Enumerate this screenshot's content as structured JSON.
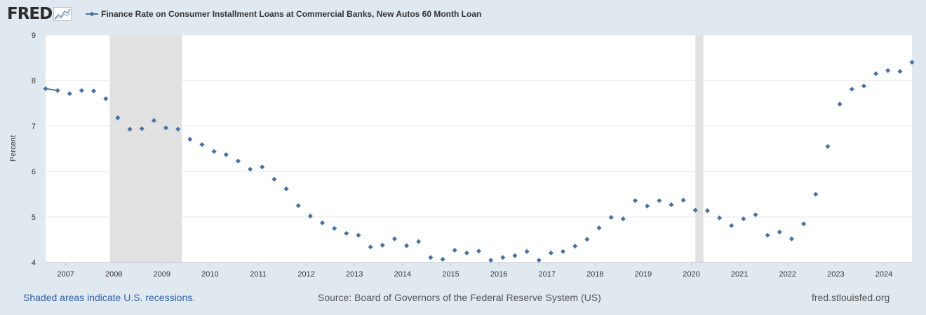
{
  "header": {
    "logo_text": "FRED",
    "series_title": "Finance Rate on Consumer Installment Loans at Commercial Banks, New Autos 60 Month Loan"
  },
  "footer": {
    "recession_note": "Shaded areas indicate U.S. recessions.",
    "source": "Source: Board of Governors of the Federal Reserve System (US)",
    "site": "fred.stlouisfed.org"
  },
  "colors": {
    "series": "#4572a7",
    "recession": "#e1e1e1",
    "plot_background": "#ffffff",
    "page_background": "#e1e9f0",
    "gridline": "#e6e6e6"
  },
  "chart_data": {
    "type": "scatter",
    "title": "Finance Rate on Consumer Installment Loans at Commercial Banks, New Autos 60 Month Loan",
    "ylabel": "Percent",
    "xlabel": "",
    "ylim": [
      4,
      9
    ],
    "yticks": [
      4,
      5,
      6,
      7,
      8,
      9
    ],
    "xlim": [
      "2006-08-01",
      "2024-08-01"
    ],
    "xticks": [
      "2007",
      "2008",
      "2009",
      "2010",
      "2011",
      "2012",
      "2013",
      "2014",
      "2015",
      "2016",
      "2017",
      "2018",
      "2019",
      "2020",
      "2021",
      "2022",
      "2023",
      "2024"
    ],
    "grid": true,
    "legend": "top-left",
    "recessions": [
      {
        "start": "2007-12-01",
        "end": "2009-06-01"
      },
      {
        "start": "2020-02-01",
        "end": "2020-04-01"
      }
    ],
    "series": [
      {
        "name": "Finance Rate on Consumer Installment Loans at Commercial Banks, New Autos 60 Month Loan",
        "x": [
          "2006-08-01",
          "2006-11-01",
          "2007-02-01",
          "2007-05-01",
          "2007-08-01",
          "2007-11-01",
          "2008-02-01",
          "2008-05-01",
          "2008-08-01",
          "2008-11-01",
          "2009-02-01",
          "2009-05-01",
          "2009-08-01",
          "2009-11-01",
          "2010-02-01",
          "2010-05-01",
          "2010-08-01",
          "2010-11-01",
          "2011-02-01",
          "2011-05-01",
          "2011-08-01",
          "2011-11-01",
          "2012-02-01",
          "2012-05-01",
          "2012-08-01",
          "2012-11-01",
          "2013-02-01",
          "2013-05-01",
          "2013-08-01",
          "2013-11-01",
          "2014-02-01",
          "2014-05-01",
          "2014-08-01",
          "2014-11-01",
          "2015-02-01",
          "2015-05-01",
          "2015-08-01",
          "2015-11-01",
          "2016-02-01",
          "2016-05-01",
          "2016-08-01",
          "2016-11-01",
          "2017-02-01",
          "2017-05-01",
          "2017-08-01",
          "2017-11-01",
          "2018-02-01",
          "2018-05-01",
          "2018-08-01",
          "2018-11-01",
          "2019-02-01",
          "2019-05-01",
          "2019-08-01",
          "2019-11-01",
          "2020-02-01",
          "2020-05-01",
          "2020-08-01",
          "2020-11-01",
          "2021-02-01",
          "2021-05-01",
          "2021-08-01",
          "2021-11-01",
          "2022-02-01",
          "2022-05-01",
          "2022-08-01",
          "2022-11-01",
          "2023-02-01",
          "2023-05-01",
          "2023-08-01",
          "2023-11-01",
          "2024-02-01",
          "2024-05-01",
          "2024-08-01"
        ],
        "values": [
          7.82,
          7.78,
          7.71,
          7.78,
          7.77,
          7.6,
          7.18,
          6.93,
          6.94,
          7.12,
          6.96,
          6.93,
          6.71,
          6.59,
          6.44,
          6.37,
          6.23,
          6.05,
          6.1,
          5.83,
          5.62,
          5.25,
          5.02,
          4.87,
          4.75,
          4.64,
          4.6,
          4.34,
          4.38,
          4.52,
          4.37,
          4.46,
          4.11,
          4.07,
          4.27,
          4.21,
          4.25,
          4.05,
          4.11,
          4.15,
          4.24,
          4.05,
          4.21,
          4.24,
          4.36,
          4.51,
          4.76,
          4.99,
          4.96,
          5.36,
          5.24,
          5.36,
          5.27,
          5.37,
          5.15,
          5.14,
          4.98,
          4.81,
          4.96,
          5.05,
          4.6,
          4.67,
          4.52,
          4.85,
          5.5,
          6.55,
          7.48,
          7.81,
          7.88,
          8.15,
          8.22,
          8.2,
          8.4
        ],
        "connected_first_points": 2
      }
    ]
  }
}
